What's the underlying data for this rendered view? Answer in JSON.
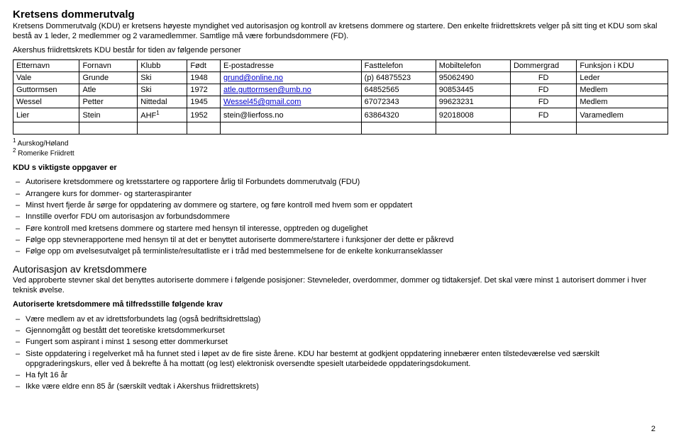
{
  "heading1": "Kretsens dommerutvalg",
  "intro_paragraph": "Kretsens Dommerutvalg (KDU) er kretsens høyeste myndighet ved autorisasjon og kontroll av kretsens dommere og startere. Den enkelte friidrettskrets velger på sitt ting et KDU som skal bestå av 1 leder, 2 medlemmer og 2 varamedlemmer. Samtlige må være forbundsdommere (FD).",
  "intro_line2": "Akershus friidrettskrets KDU består for tiden av følgende personer",
  "table": {
    "headers": [
      "Etternavn",
      "Fornavn",
      "Klubb",
      "Født",
      "E-postadresse",
      "Fasttelefon",
      "Mobiltelefon",
      "Dommergrad",
      "Funksjon i KDU"
    ],
    "rows": [
      {
        "c0": "Vale",
        "c1": "Grunde",
        "c2": "Ski",
        "c3": "1948",
        "c4": "grund@online.no",
        "c5": "(p) 64875523",
        "c6": "95062490",
        "c7": "FD",
        "c8": "Leder",
        "email": true
      },
      {
        "c0": "Guttormsen",
        "c1": "Atle",
        "c2": "Ski",
        "c3": "1972",
        "c4": "atle.guttormsen@umb.no",
        "c5": "64852565",
        "c6": "90853445",
        "c7": "FD",
        "c8": "Medlem",
        "email": true
      },
      {
        "c0": "Wessel",
        "c1": "Petter",
        "c2": "Nittedal",
        "c3": "1945",
        "c4": "Wessel45@gmail.com",
        "c5": "67072343",
        "c6": "99623231",
        "c7": "FD",
        "c8": "Medlem",
        "email": true
      },
      {
        "c0": "Lier",
        "c1": "Stein",
        "c2": "AHF",
        "c2sup": "1",
        "c3": "1952",
        "c4": "stein@lierfoss.no",
        "c5": "63864320",
        "c6": "92018008",
        "c7": "FD",
        "c8": "Varamedlem",
        "email": false
      }
    ],
    "col_widths": [
      "80px",
      "70px",
      "60px",
      "40px",
      "170px",
      "90px",
      "90px",
      "80px",
      "110px"
    ]
  },
  "footnote1_sup": "1",
  "footnote1": " Aurskog/Høland",
  "footnote2_sup": "2",
  "footnote2": " Romerike Friidrett",
  "kdu_title": "KDU s viktigste oppgaver er",
  "kdu_items": [
    "Autorisere kretsdommere og kretsstartere og rapportere årlig til Forbundets dommerutvalg (FDU)",
    "Arrangere kurs for dommer- og starteraspiranter",
    "Minst hvert fjerde år sørge for oppdatering av dommere og startere, og føre kontroll med hvem som er oppdatert",
    "Innstille overfor FDU om autorisasjon av forbundsdommere",
    "Føre kontroll med kretsens dommere og startere med hensyn til interesse, opptreden og dugelighet",
    "Følge opp stevnerapportene med hensyn til at det er benyttet autoriserte dommere/startere i funksjoner der dette er påkrevd",
    "Følge opp om øvelsesutvalget på terminliste/resultatliste er i tråd med bestemmelsene for de enkelte konkurranseklasser"
  ],
  "heading2": "Autorisasjon av kretsdommere",
  "auth_paragraph": "Ved approberte stevner skal det benyttes autoriserte dommere i følgende posisjoner: Stevneleder, overdommer, dommer og tidtakersjef. Det skal være minst 1 autorisert dommer i hver teknisk øvelse.",
  "req_title": "Autoriserte kretsdommere må tilfredsstille følgende krav",
  "req_items": [
    "Være medlem av et av idrettsforbundets lag (også bedriftsidrettslag)",
    "Gjennomgått og bestått det teoretiske kretsdommerkurset",
    "Fungert som aspirant i minst 1 sesong etter dommerkurset",
    "Siste oppdatering i regelverket må ha funnet sted i løpet av de fire siste årene. KDU har bestemt at godkjent oppdatering innebærer enten tilstedeværelse ved særskilt oppgraderingskurs, eller ved å bekrefte å ha mottatt (og lest) elektronisk oversendte spesielt utarbeidede oppdateringsdokument.",
    "Ha fylt 16 år",
    "Ikke være eldre enn 85 år (særskilt vedtak i Akershus friidrettskrets)"
  ],
  "page_number": "2"
}
